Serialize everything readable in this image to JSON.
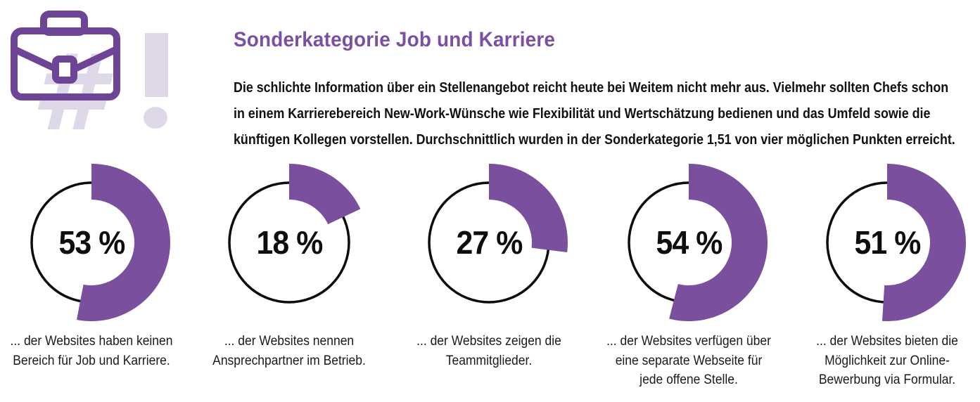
{
  "header": {
    "title": "Sonderkategorie Job und Karriere",
    "intro_lines": [
      "Die schlichte Information über ein Stellenangebot reicht heute bei Weitem nicht mehr aus. Vielmehr sollten Chefs schon",
      "in einem Karrierebereich New-Work-Wünsche wie Flexibilität und Wertschätzung bedienen und das Umfeld sowie die",
      "künftigen Kollegen vorstellen. Durchschnittlich wurden in der Sonderkategorie 1,51 von vier möglichen Punkten erreicht."
    ],
    "watermark_hash": "#",
    "icon": "briefcase-icon"
  },
  "colors": {
    "accent_purple": "#7a4f9e",
    "icon_purple": "#6d4496",
    "title_purple": "#7b50a3",
    "watermark_lavender": "#ded8e8",
    "ring_black": "#0d0d0d",
    "text_black": "#111111"
  },
  "chart_data": {
    "type": "pie",
    "subtype": "donut-multiples",
    "unit": "%",
    "title": "Sonderkategorie Job und Karriere",
    "arc_start": "top",
    "arc_direction": "clockwise",
    "colors": {
      "arc": "#7a4f9e",
      "ring": "#0d0d0d"
    },
    "charts": [
      {
        "value": 53,
        "label": "53 %",
        "caption_lines": [
          "... der Websites haben keinen",
          "Bereich für Job und Karriere."
        ]
      },
      {
        "value": 18,
        "label": "18 %",
        "caption_lines": [
          "... der Websites nennen",
          "Ansprechpartner im Betrieb."
        ]
      },
      {
        "value": 27,
        "label": "27 %",
        "caption_lines": [
          "... der Websites zeigen die",
          "Teammitglieder."
        ]
      },
      {
        "value": 54,
        "label": "54 %",
        "caption_lines": [
          "... der Websites verfügen über",
          "eine separate Webseite für",
          "jede offene Stelle."
        ]
      },
      {
        "value": 51,
        "label": "51 %",
        "caption_lines": [
          "... der Websites bieten die",
          "Möglichkeit zur Online-",
          "Bewerbung via Formular."
        ]
      }
    ]
  }
}
